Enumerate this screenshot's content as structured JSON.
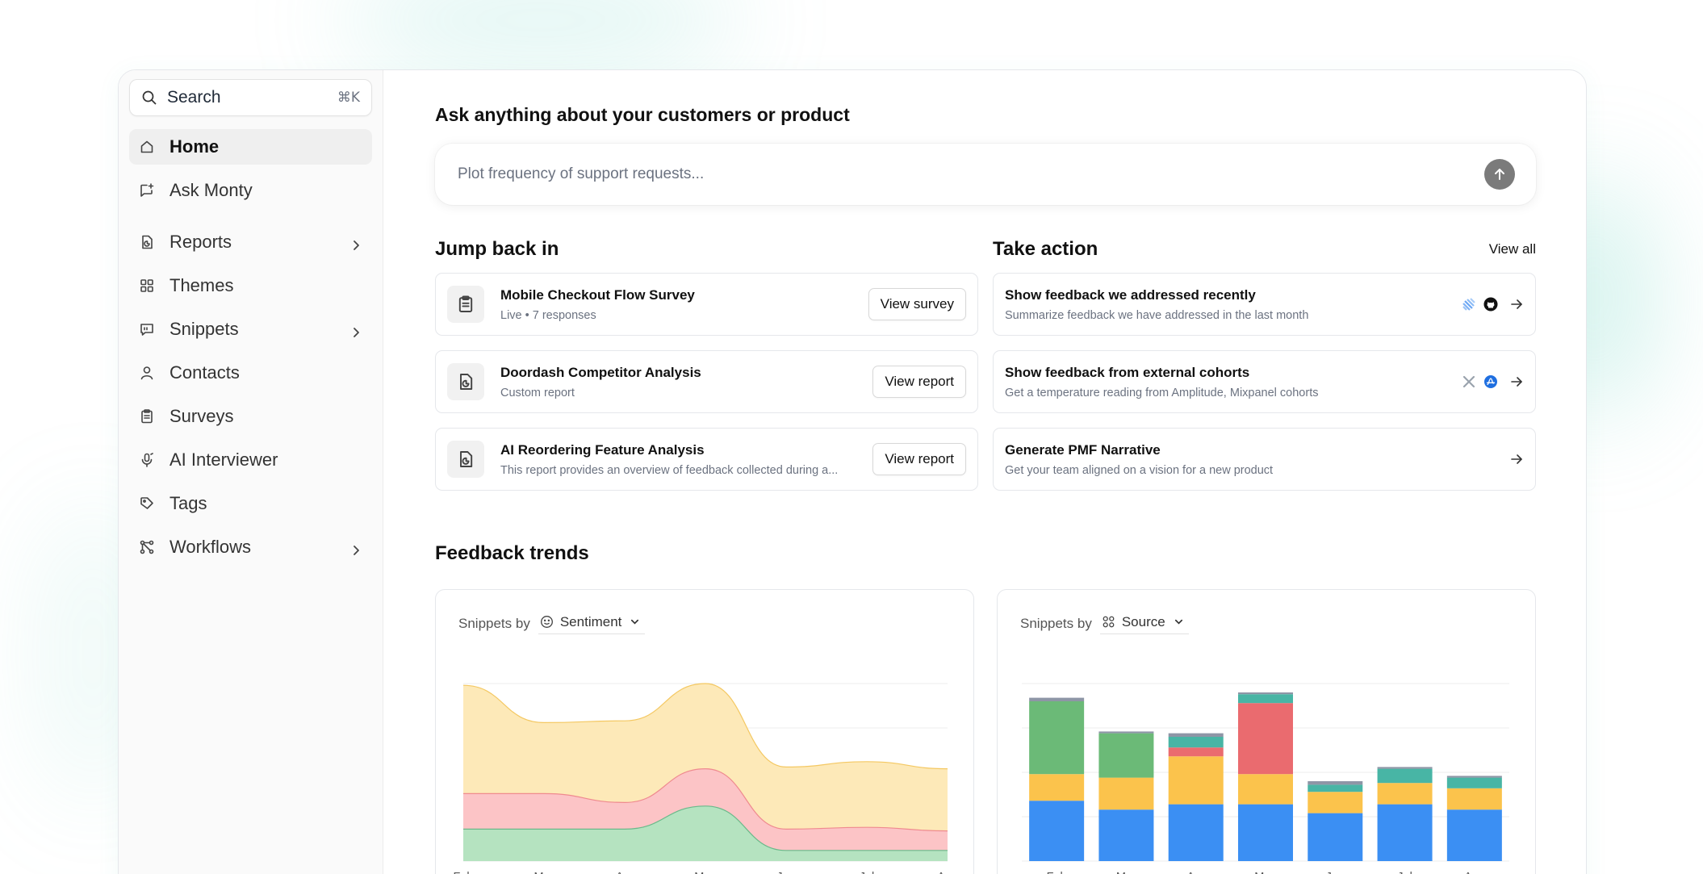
{
  "sidebar": {
    "search": {
      "label": "Search",
      "shortcut": "⌘K"
    },
    "items": [
      {
        "key": "home",
        "label": "Home",
        "icon": "home-icon",
        "active": true,
        "chevron": false
      },
      {
        "key": "ask-monty",
        "label": "Ask Monty",
        "icon": "chat-plus-icon",
        "active": false,
        "chevron": false
      },
      {
        "key": "reports",
        "label": "Reports",
        "icon": "report-icon",
        "active": false,
        "chevron": true
      },
      {
        "key": "themes",
        "label": "Themes",
        "icon": "grid-icon",
        "active": false,
        "chevron": false
      },
      {
        "key": "snippets",
        "label": "Snippets",
        "icon": "quote-icon",
        "active": false,
        "chevron": true
      },
      {
        "key": "contacts",
        "label": "Contacts",
        "icon": "user-icon",
        "active": false,
        "chevron": false
      },
      {
        "key": "surveys",
        "label": "Surveys",
        "icon": "clipboard-icon",
        "active": false,
        "chevron": false
      },
      {
        "key": "ai-interviewer",
        "label": "AI Interviewer",
        "icon": "microphone-icon",
        "active": false,
        "chevron": false
      },
      {
        "key": "tags",
        "label": "Tags",
        "icon": "tag-icon",
        "active": false,
        "chevron": false
      },
      {
        "key": "workflows",
        "label": "Workflows",
        "icon": "workflow-icon",
        "active": false,
        "chevron": true
      }
    ]
  },
  "main": {
    "ask": {
      "title": "Ask anything about your customers or product",
      "placeholder": "Plot frequency of support requests..."
    },
    "jump_back": {
      "title": "Jump back in",
      "items": [
        {
          "title": "Mobile Checkout Flow Survey",
          "subtitle": "Live • 7 responses",
          "button": "View survey",
          "icon": "clipboard-icon"
        },
        {
          "title": "Doordash Competitor Analysis",
          "subtitle": "Custom report",
          "button": "View report",
          "icon": "report-icon"
        },
        {
          "title": "AI Reordering Feature Analysis",
          "subtitle": "This report provides an overview of feedback collected during a...",
          "button": "View report",
          "icon": "report-icon"
        }
      ]
    },
    "take_action": {
      "title": "Take action",
      "view_all": "View all",
      "items": [
        {
          "title": "Show feedback we addressed recently",
          "subtitle": "Summarize feedback we have addressed in the last month",
          "badges": [
            "linear-icon",
            "github-icon"
          ]
        },
        {
          "title": "Show feedback from external cohorts",
          "subtitle": "Get a temperature reading from Amplitude, Mixpanel cohorts",
          "badges": [
            "mixpanel-icon",
            "amplitude-icon"
          ]
        },
        {
          "title": "Generate PMF Narrative",
          "subtitle": "Get your team aligned on a vision for a new product",
          "badges": []
        }
      ]
    },
    "trends": {
      "title": "Feedback trends",
      "charts": [
        {
          "prefix": "Snippets by",
          "dropdown": "Sentiment",
          "icon": "smiley-icon"
        },
        {
          "prefix": "Snippets by",
          "dropdown": "Source",
          "icon": "grid-icon"
        }
      ]
    }
  },
  "chart_data": [
    {
      "type": "area",
      "stacked": true,
      "categories": [
        "Feb",
        "Mar",
        "Apr",
        "May",
        "Jun",
        "Jul",
        "Aug"
      ],
      "ylim": [
        0,
        100
      ],
      "grid": true,
      "series": [
        {
          "values": [
            18,
            18,
            18,
            31,
            6,
            6,
            6
          ],
          "color": "#b5e3c0",
          "stroke": "#6ab98a"
        },
        {
          "values": [
            20,
            20,
            15,
            21,
            12,
            13,
            11
          ],
          "color": "#fcc4c6",
          "stroke": "#ef8a8f"
        },
        {
          "values": [
            61,
            40,
            46,
            48,
            35,
            37,
            35
          ],
          "color": "#fde9b8",
          "stroke": "#f4c862"
        }
      ]
    },
    {
      "type": "bar",
      "stacked": true,
      "categories": [
        "Feb",
        "Mar",
        "Apr",
        "May",
        "Jun",
        "Jul",
        "Aug"
      ],
      "ylim": [
        0,
        100
      ],
      "grid": true,
      "series": [
        {
          "values": [
            34,
            29,
            32,
            32,
            27,
            32,
            29
          ],
          "color": "#3b8ff3"
        },
        {
          "values": [
            15,
            18,
            27,
            17,
            12,
            12,
            12
          ],
          "color": "#fbc34c"
        },
        {
          "values": [
            0,
            0,
            5,
            40,
            0,
            0,
            0
          ],
          "color": "#ea6b6f"
        },
        {
          "values": [
            0,
            0,
            6,
            5,
            4,
            8,
            6
          ],
          "color": "#48b5a5"
        },
        {
          "values": [
            41,
            25,
            0,
            0,
            0,
            0,
            0
          ],
          "color": "#6bba77"
        },
        {
          "values": [
            2,
            1,
            2,
            1,
            2,
            1,
            1
          ],
          "color": "#8e96a6"
        }
      ]
    }
  ]
}
